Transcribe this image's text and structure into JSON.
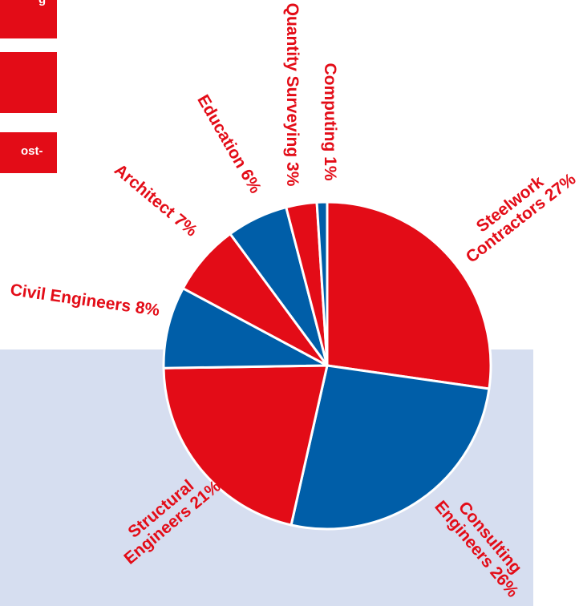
{
  "left_tabs": {
    "tab1_text": "g",
    "tab2_text": "",
    "tab3_text": "ost-"
  },
  "colors": {
    "red": "#e30c17",
    "blue": "#005ea8",
    "band": "#d6def0"
  },
  "chart_data": {
    "type": "pie",
    "title": "",
    "slices": [
      {
        "label": "Steelwork Contractors 27%",
        "value": 27,
        "color": "#e30c17"
      },
      {
        "label": "Consulting Engineers 26%",
        "value": 26,
        "color": "#005ea8"
      },
      {
        "label": "Structural Engineers 21%",
        "value": 21,
        "color": "#e30c17"
      },
      {
        "label": "Civil Engineers 8%",
        "value": 8,
        "color": "#005ea8"
      },
      {
        "label": "Architect 7%",
        "value": 7,
        "color": "#e30c17"
      },
      {
        "label": "Education 6%",
        "value": 6,
        "color": "#005ea8"
      },
      {
        "label": "Quantity Surveying 3%",
        "value": 3,
        "color": "#e30c17"
      },
      {
        "label": "Computing 1%",
        "value": 1,
        "color": "#005ea8"
      }
    ]
  }
}
